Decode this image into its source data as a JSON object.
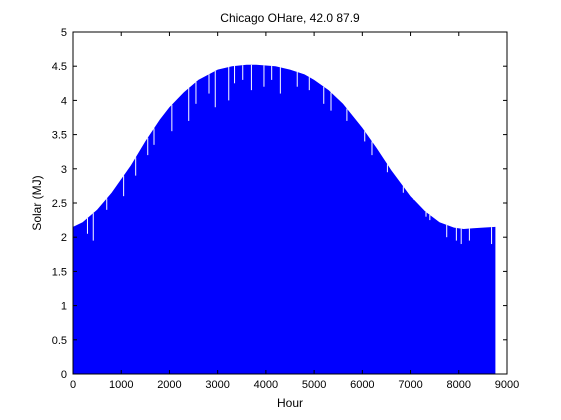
{
  "chart_data": {
    "type": "area",
    "title": "Chicago OHare, 42.0 87.9",
    "xlabel": "Hour",
    "ylabel": "Solar (MJ)",
    "xlim": [
      0,
      9000
    ],
    "ylim": [
      0,
      5
    ],
    "xticks": [
      0,
      1000,
      2000,
      3000,
      4000,
      5000,
      6000,
      7000,
      8000,
      9000
    ],
    "yticks": [
      0,
      0.5,
      1,
      1.5,
      2,
      2.5,
      3,
      3.5,
      4,
      4.5,
      5
    ],
    "xtick_labels": [
      "0",
      "1000",
      "2000",
      "3000",
      "4000",
      "5000",
      "6000",
      "7000",
      "8000",
      "9000"
    ],
    "ytick_labels": [
      "0",
      "0.5",
      "1",
      "1.5",
      "2",
      "2.5",
      "3",
      "3.5",
      "4",
      "4.5",
      "5"
    ],
    "grid": false,
    "fill_color": "#0000ff",
    "envelope": {
      "x": [
        0,
        200,
        500,
        800,
        1000,
        1200,
        1500,
        1800,
        2000,
        2300,
        2600,
        3000,
        3300,
        3600,
        3800,
        4000,
        4200,
        4500,
        4800,
        5000,
        5300,
        5600,
        6000,
        6300,
        6600,
        7000,
        7300,
        7600,
        7900,
        8100,
        8300,
        8500,
        8760
      ],
      "y": [
        2.15,
        2.22,
        2.4,
        2.65,
        2.85,
        3.05,
        3.4,
        3.72,
        3.9,
        4.12,
        4.3,
        4.45,
        4.5,
        4.52,
        4.52,
        4.51,
        4.5,
        4.45,
        4.38,
        4.3,
        4.15,
        3.95,
        3.6,
        3.3,
        2.98,
        2.6,
        2.38,
        2.22,
        2.14,
        2.12,
        2.13,
        2.14,
        2.15
      ]
    },
    "dips": {
      "x": [
        300,
        420,
        700,
        1050,
        1300,
        1550,
        1680,
        2050,
        2400,
        2550,
        2820,
        2950,
        3230,
        3350,
        3520,
        3700,
        3960,
        4120,
        4300,
        4650,
        4900,
        5200,
        5350,
        5680,
        6050,
        6200,
        6520,
        6850,
        7060,
        7320,
        7400,
        7750,
        7950,
        8050,
        8220,
        8680
      ],
      "y": [
        2.05,
        1.95,
        2.4,
        2.6,
        2.9,
        3.2,
        3.35,
        3.55,
        3.7,
        3.95,
        4.1,
        3.9,
        4.0,
        4.25,
        4.3,
        4.15,
        4.2,
        4.3,
        4.1,
        4.2,
        4.15,
        3.95,
        3.85,
        3.7,
        3.4,
        3.2,
        2.95,
        2.65,
        2.55,
        2.3,
        2.25,
        2.0,
        1.95,
        1.9,
        1.95,
        1.9
      ]
    }
  }
}
